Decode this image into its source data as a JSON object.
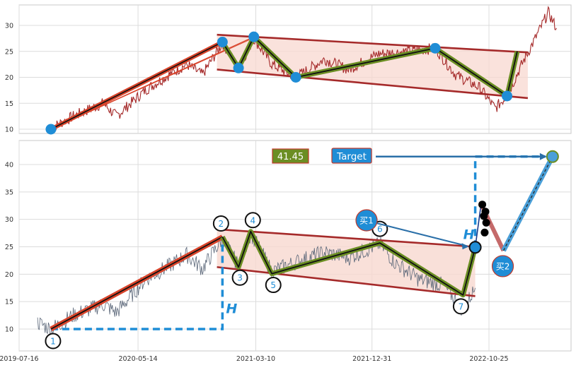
{
  "chart_data": [
    {
      "type": "line",
      "panel": "top",
      "ylim": [
        9,
        34
      ],
      "yticks": [
        10,
        15,
        20,
        25,
        30
      ],
      "grid": true,
      "colors": {
        "price": "#a52a2a",
        "channel_line": "#a52a2a",
        "channel_fill": "#f8d8d0",
        "zigzag_outer": "#6b8e23",
        "zigzag_inner": "#111111",
        "pivot": "#1f8dd6",
        "trend": "#d9442b"
      },
      "channel": {
        "upper": [
          [
            "2020-12-01",
            28.2
          ],
          [
            "2023-02-01",
            24.8
          ]
        ],
        "lower": [
          [
            "2020-12-01",
            21.5
          ],
          [
            "2023-02-01",
            16.0
          ]
        ]
      },
      "pivots": [
        {
          "date": "2019-10-05",
          "value": 10.0
        },
        {
          "date": "2020-12-15",
          "value": 26.8
        },
        {
          "date": "2021-01-25",
          "value": 21.8
        },
        {
          "date": "2021-03-05",
          "value": 27.8
        },
        {
          "date": "2021-06-20",
          "value": 20.0
        },
        {
          "date": "2022-06-10",
          "value": 25.6
        },
        {
          "date": "2022-12-10",
          "value": 16.4
        }
      ],
      "price_anchors": [
        [
          "2019-10-05",
          10.2
        ],
        [
          "2019-12-01",
          12.5
        ],
        [
          "2020-02-15",
          15.0
        ],
        [
          "2020-03-20",
          12.5
        ],
        [
          "2020-06-01",
          17.5
        ],
        [
          "2020-08-01",
          20.5
        ],
        [
          "2020-09-15",
          22.5
        ],
        [
          "2020-10-25",
          20.5
        ],
        [
          "2020-12-15",
          26.6
        ],
        [
          "2021-01-25",
          21.8
        ],
        [
          "2021-03-05",
          27.5
        ],
        [
          "2021-04-20",
          22.5
        ],
        [
          "2021-06-20",
          20.0
        ],
        [
          "2021-09-01",
          23.5
        ],
        [
          "2021-11-01",
          21.5
        ],
        [
          "2022-01-15",
          24.5
        ],
        [
          "2022-04-01",
          25.0
        ],
        [
          "2022-06-10",
          25.6
        ],
        [
          "2022-08-01",
          20.5
        ],
        [
          "2022-10-01",
          18.0
        ],
        [
          "2022-11-10",
          14.0
        ],
        [
          "2022-12-10",
          16.5
        ],
        [
          "2023-01-20",
          23.0
        ],
        [
          "2023-02-20",
          27.5
        ],
        [
          "2023-03-25",
          32.5
        ],
        [
          "2023-04-15",
          29.5
        ]
      ]
    },
    {
      "type": "line",
      "panel": "bottom",
      "ylim": [
        6,
        44
      ],
      "yticks": [
        10,
        15,
        20,
        25,
        30,
        35,
        40
      ],
      "xticks": [
        "2019-07-16",
        "2020-05-14",
        "2021-03-10",
        "2021-12-31",
        "2022-10-25"
      ],
      "grid": true,
      "colors": {
        "price": "#5a6678",
        "channel_line": "#a52a2a",
        "channel_fill": "#f8d8d0",
        "zigzag_outer": "#6b8e23",
        "zigzag_inner": "#111111",
        "pivot_label": "#1f8dd6",
        "dashed": "#1f8dd6",
        "target_box": "#1f8dd6",
        "price_box": "#6b8e23",
        "buy_box": "#1f8dd6",
        "forecast_up": "#4a9fd8",
        "forecast_down": "#c56a6a",
        "black_dots": "#000000"
      },
      "channel": {
        "upper": [
          [
            "2020-12-01",
            28.2
          ],
          [
            "2022-09-20",
            25.0
          ]
        ],
        "lower": [
          [
            "2020-12-01",
            21.3
          ],
          [
            "2022-09-20",
            16.0
          ]
        ]
      },
      "pivots": [
        {
          "label": "1",
          "date": "2019-10-05",
          "value": 10.0
        },
        {
          "label": "2",
          "date": "2020-12-15",
          "value": 26.8
        },
        {
          "label": "3",
          "date": "2021-01-25",
          "value": 21.3
        },
        {
          "label": "4",
          "date": "2021-02-25",
          "value": 27.8
        },
        {
          "label": "5",
          "date": "2021-04-20",
          "value": 20.1
        },
        {
          "label": "6",
          "date": "2022-01-20",
          "value": 25.7
        },
        {
          "label": "7",
          "date": "2022-08-20",
          "value": 16.2
        }
      ],
      "breakout": {
        "date": "2022-09-20",
        "value": 24.9
      },
      "target": {
        "label": "Target",
        "date": "2023-04-05",
        "value": 41.45
      },
      "current_price_label": "41.45",
      "h_label": "H",
      "buy_labels": [
        "买1",
        "买2"
      ],
      "forecast_peak": {
        "date": "2022-10-05",
        "value": 32.8
      },
      "buy2_point": {
        "date": "2022-12-01",
        "value": 24.3
      },
      "black_dots": [
        [
          "2022-10-08",
          32.7
        ],
        [
          "2022-10-16",
          31.4
        ],
        [
          "2022-10-12",
          30.6
        ],
        [
          "2022-10-18",
          29.4
        ],
        [
          "2022-10-14",
          27.6
        ]
      ],
      "price_anchors": [
        [
          "2019-09-01",
          11.2
        ],
        [
          "2019-10-05",
          10.0
        ],
        [
          "2019-12-01",
          12.5
        ],
        [
          "2020-02-15",
          14.5
        ],
        [
          "2020-03-20",
          13.0
        ],
        [
          "2020-06-01",
          19.0
        ],
        [
          "2020-08-01",
          21.5
        ],
        [
          "2020-09-15",
          23.5
        ],
        [
          "2020-10-25",
          21.0
        ],
        [
          "2020-12-15",
          26.5
        ],
        [
          "2021-01-25",
          21.5
        ],
        [
          "2021-02-25",
          27.5
        ],
        [
          "2021-04-20",
          20.5
        ],
        [
          "2021-07-01",
          22.5
        ],
        [
          "2021-09-01",
          24.0
        ],
        [
          "2021-11-01",
          23.0
        ],
        [
          "2022-01-20",
          25.5
        ],
        [
          "2022-03-01",
          22.0
        ],
        [
          "2022-05-01",
          19.0
        ],
        [
          "2022-07-01",
          18.0
        ],
        [
          "2022-08-20",
          13.5
        ],
        [
          "2022-09-20",
          17.5
        ]
      ]
    }
  ]
}
